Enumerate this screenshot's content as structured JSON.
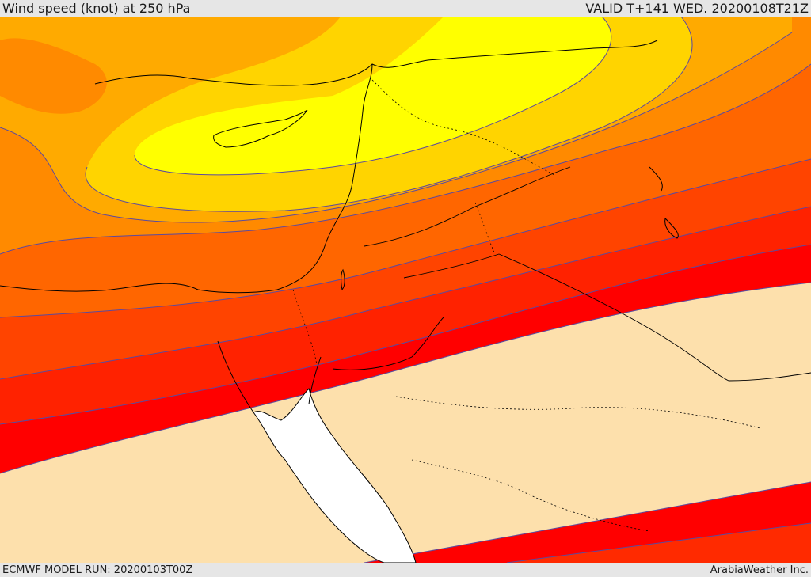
{
  "header": {
    "title": "Wind speed (knot) at 250 hPa",
    "valid": "VALID T+141 WED. 20200108T21Z"
  },
  "footer": {
    "model_run": "ECMWF MODEL RUN: 20200103T00Z",
    "credit": "ArabiaWeather Inc."
  },
  "colors": {
    "bg_low": "#fde0ac",
    "band_1": "#ff0000",
    "band_2": "#ff2200",
    "band_3": "#ff4400",
    "band_4": "#ff6600",
    "band_5": "#ff8a00",
    "band_6": "#ffaa00",
    "band_7": "#ffd400",
    "band_8": "#ffff00",
    "sea": "#ffffff",
    "coast": "#000000",
    "contour": "#5b4a9e"
  }
}
